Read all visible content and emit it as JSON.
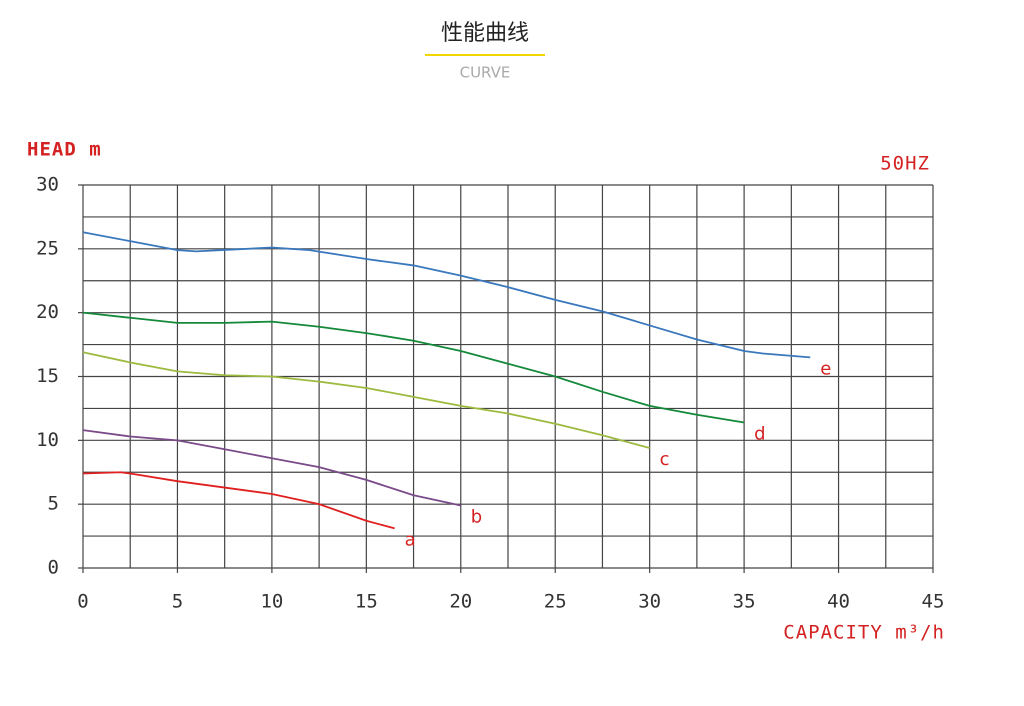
{
  "chart_data": {
    "type": "line",
    "title": "性能曲线",
    "subtitle": "CURVE",
    "y_label": "HEAD m",
    "x_label": "CAPACITY m³/h",
    "annotation": "50HZ",
    "xlim": [
      0,
      45
    ],
    "ylim": [
      0,
      30
    ],
    "xticks": [
      0,
      5,
      10,
      15,
      20,
      25,
      30,
      35,
      40,
      45
    ],
    "yticks": [
      0,
      5,
      10,
      15,
      20,
      25,
      30
    ],
    "xgrid": [
      0,
      2.5,
      5,
      7.5,
      10,
      12.5,
      15,
      17.5,
      20,
      22.5,
      25,
      27.5,
      30,
      32.5,
      35,
      37.5,
      40,
      42.5,
      45
    ],
    "ygrid": [
      0,
      2.5,
      5,
      7.5,
      10,
      12.5,
      15,
      17.5,
      20,
      22.5,
      25,
      27.5,
      30
    ],
    "grid": true,
    "series": [
      {
        "name": "a",
        "color": "#e0201e",
        "x": [
          0,
          2,
          2.5,
          5,
          7.5,
          10,
          12.5,
          15,
          16.5
        ],
        "values": [
          7.4,
          7.5,
          7.4,
          6.8,
          6.3,
          5.8,
          5,
          3.7,
          3.1
        ]
      },
      {
        "name": "b",
        "color": "#7a4a8a",
        "x": [
          0,
          2.5,
          5,
          7.5,
          10,
          12.5,
          15,
          17.5,
          20
        ],
        "values": [
          10.8,
          10.3,
          10,
          9.3,
          8.6,
          7.9,
          6.9,
          5.7,
          4.9
        ]
      },
      {
        "name": "c",
        "color": "#9cba3e",
        "x": [
          0,
          2.5,
          5,
          7.5,
          10,
          12.5,
          15,
          17.5,
          20,
          22.5,
          25,
          27.5,
          30
        ],
        "values": [
          16.9,
          16.1,
          15.4,
          15.1,
          15,
          14.6,
          14.1,
          13.4,
          12.7,
          12.1,
          11.3,
          10.4,
          9.4
        ]
      },
      {
        "name": "d",
        "color": "#14893a",
        "x": [
          0,
          2.5,
          5,
          7.5,
          10,
          12.5,
          15,
          17.5,
          20,
          22.5,
          25,
          27.5,
          30,
          32.5,
          35
        ],
        "values": [
          20,
          19.6,
          19.2,
          19.2,
          19.3,
          18.9,
          18.4,
          17.8,
          17,
          16,
          15,
          13.8,
          12.7,
          12,
          11.4
        ]
      },
      {
        "name": "e",
        "color": "#3a78bd",
        "x": [
          0,
          2.5,
          5,
          6,
          10,
          12,
          15,
          17.5,
          20,
          22.5,
          25,
          27.5,
          30,
          32.5,
          35,
          36,
          38.5
        ],
        "values": [
          26.3,
          25.6,
          24.9,
          24.8,
          25.1,
          24.9,
          24.2,
          23.7,
          22.9,
          22,
          21,
          20.1,
          19,
          17.9,
          17,
          16.8,
          16.5
        ]
      }
    ]
  }
}
